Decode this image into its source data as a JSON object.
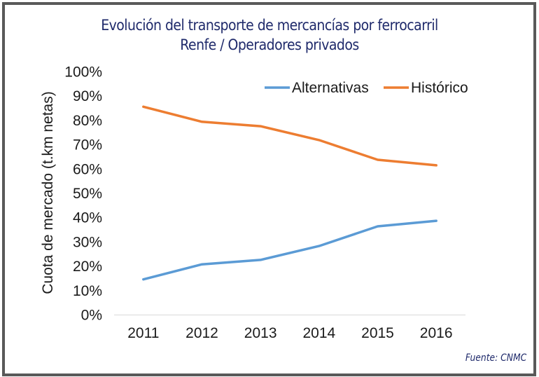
{
  "chart_data": {
    "type": "line",
    "title": "Evolución del transporte de mercancías por ferrocarril",
    "subtitle": "Renfe / Operadores privados",
    "xlabel": "",
    "ylabel": "Cuota de mercado (t.km netas)",
    "categories": [
      "2011",
      "2012",
      "2013",
      "2014",
      "2015",
      "2016"
    ],
    "series": [
      {
        "name": "Alternativas",
        "color": "#5b9bd5",
        "values": [
          14.5,
          20.7,
          22.5,
          28.2,
          36.3,
          38.6
        ]
      },
      {
        "name": "Histórico",
        "color": "#ed7d31",
        "values": [
          85.5,
          79.3,
          77.5,
          71.8,
          63.7,
          61.4
        ]
      }
    ],
    "ylim": [
      0,
      100
    ],
    "yticks": [
      "0%",
      "10%",
      "20%",
      "30%",
      "40%",
      "50%",
      "60%",
      "70%",
      "80%",
      "90%",
      "100%"
    ],
    "grid": false,
    "legend": "top-right",
    "source": "Fuente: CNMC"
  }
}
